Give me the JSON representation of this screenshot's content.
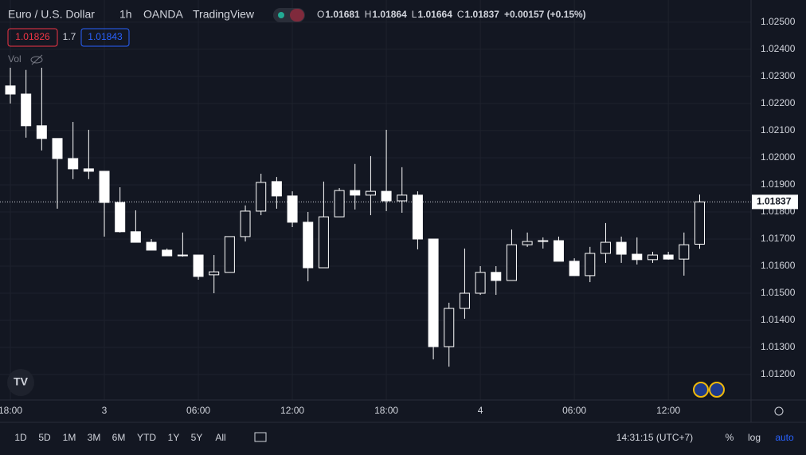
{
  "header": {
    "symbol": "Euro / U.S. Dollar",
    "interval": "1h",
    "exchange": "OANDA",
    "source": "TradingView",
    "ohlc": [
      {
        "key": "O",
        "value": "1.01681"
      },
      {
        "key": "H",
        "value": "1.01864"
      },
      {
        "key": "L",
        "value": "1.01664"
      },
      {
        "key": "C",
        "value": "1.01837"
      }
    ],
    "change": "+0.00157 (+0.15%)",
    "bid": "1.01826",
    "spread": "1.7",
    "ask": "1.01843",
    "volume_label": "Vol"
  },
  "chart_data": {
    "type": "candlestick",
    "up_color": "#131722",
    "down_color": "#ffffff",
    "outline_color": "#ffffff",
    "grid": true,
    "categories": [
      "18:00",
      null,
      null,
      null,
      null,
      null,
      "3",
      null,
      null,
      null,
      null,
      null,
      "06:00",
      null,
      null,
      null,
      null,
      null,
      "12:00",
      null,
      null,
      null,
      null,
      null,
      "18:00",
      null,
      null,
      null,
      null,
      null,
      "4",
      null,
      null,
      null,
      null,
      null,
      "06:00",
      null,
      null,
      null,
      null,
      null,
      "12:00",
      null,
      null
    ],
    "ohlc": [
      [
        1.02265,
        1.02332,
        1.022,
        1.02235
      ],
      [
        1.02235,
        1.02324,
        1.02074,
        1.02118
      ],
      [
        1.02118,
        1.02332,
        1.02027,
        1.02071
      ],
      [
        1.02071,
        1.02071,
        1.01812,
        1.01997
      ],
      [
        1.01997,
        1.02132,
        1.01921,
        1.01959
      ],
      [
        1.01959,
        1.02103,
        1.01921,
        1.0195
      ],
      [
        1.0195,
        1.0195,
        1.01709,
        1.01835
      ],
      [
        1.01835,
        1.01891,
        1.01724,
        1.01727
      ],
      [
        1.01727,
        1.01806,
        1.01688,
        1.01688
      ],
      [
        1.01688,
        1.017,
        1.01659,
        1.01659
      ],
      [
        1.01659,
        1.01665,
        1.01638,
        1.01638
      ],
      [
        1.01638,
        1.01724,
        1.01635,
        1.01641
      ],
      [
        1.01641,
        1.01641,
        1.0155,
        1.01562
      ],
      [
        1.01568,
        1.01641,
        1.015,
        1.01579
      ],
      [
        1.01577,
        1.01709,
        1.01577,
        1.01709
      ],
      [
        1.01709,
        1.01824,
        1.01691,
        1.01803
      ],
      [
        1.01803,
        1.01941,
        1.01788,
        1.01909
      ],
      [
        1.01912,
        1.01929,
        1.01812,
        1.01859
      ],
      [
        1.01859,
        1.01876,
        1.01744,
        1.01762
      ],
      [
        1.01762,
        1.018,
        1.01544,
        1.01594
      ],
      [
        1.01594,
        1.01912,
        1.01594,
        1.01782
      ],
      [
        1.01782,
        1.01888,
        1.01782,
        1.01879
      ],
      [
        1.01879,
        1.01977,
        1.01809,
        1.01862
      ],
      [
        1.01862,
        1.02006,
        1.01788,
        1.01876
      ],
      [
        1.01876,
        1.02103,
        1.01803,
        1.01841
      ],
      [
        1.01841,
        1.01965,
        1.01797,
        1.01862
      ],
      [
        1.01862,
        1.01876,
        1.01662,
        1.017
      ],
      [
        1.017,
        1.017,
        1.01256,
        1.01303
      ],
      [
        1.01303,
        1.01465,
        1.01229,
        1.01444
      ],
      [
        1.01444,
        1.01665,
        1.01406,
        1.015
      ],
      [
        1.015,
        1.016,
        1.01494,
        1.01577
      ],
      [
        1.01577,
        1.016,
        1.01494,
        1.01547
      ],
      [
        1.01547,
        1.01735,
        1.01547,
        1.01679
      ],
      [
        1.01679,
        1.01724,
        1.01671,
        1.01691
      ],
      [
        1.01691,
        1.01706,
        1.01665,
        1.01694
      ],
      [
        1.01694,
        1.01709,
        1.01618,
        1.01618
      ],
      [
        1.01618,
        1.01629,
        1.01565,
        1.01565
      ],
      [
        1.01565,
        1.01671,
        1.01541,
        1.01647
      ],
      [
        1.01647,
        1.01759,
        1.01612,
        1.01688
      ],
      [
        1.01688,
        1.01709,
        1.01612,
        1.01644
      ],
      [
        1.01644,
        1.01706,
        1.01606,
        1.01624
      ],
      [
        1.01624,
        1.01653,
        1.01612,
        1.01641
      ],
      [
        1.01641,
        1.01653,
        1.01624,
        1.01626
      ],
      [
        1.01626,
        1.01724,
        1.01565,
        1.01679
      ],
      [
        1.01681,
        1.01864,
        1.01664,
        1.01837
      ]
    ],
    "ylim": [
      1.01106,
      1.02582
    ],
    "yticks": [
      {
        "value": 1.025,
        "label": "1.02500"
      },
      {
        "value": 1.024,
        "label": "1.02400"
      },
      {
        "value": 1.023,
        "label": "1.02300"
      },
      {
        "value": 1.022,
        "label": "1.02200"
      },
      {
        "value": 1.021,
        "label": "1.02100"
      },
      {
        "value": 1.02,
        "label": "1.02000"
      },
      {
        "value": 1.019,
        "label": "1.01900"
      },
      {
        "value": 1.018,
        "label": "1.01800"
      },
      {
        "value": 1.017,
        "label": "1.01700"
      },
      {
        "value": 1.016,
        "label": "1.01600"
      },
      {
        "value": 1.015,
        "label": "1.01500"
      },
      {
        "value": 1.014,
        "label": "1.01400"
      },
      {
        "value": 1.013,
        "label": "1.01300"
      },
      {
        "value": 1.012,
        "label": "1.01200"
      }
    ],
    "last_price": {
      "value": 1.01837,
      "label": "1.01837"
    }
  },
  "toolbar": {
    "ranges": [
      "1D",
      "5D",
      "1M",
      "3M",
      "6M",
      "YTD",
      "1Y",
      "5Y",
      "All"
    ],
    "clock": "14:31:15 (UTC+7)",
    "percent": "%",
    "log": "log",
    "auto": "auto"
  },
  "logo": "TV"
}
